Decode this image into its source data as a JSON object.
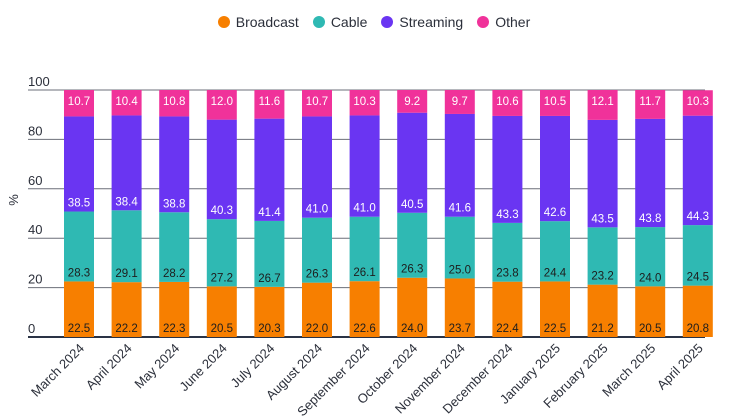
{
  "chart_data": {
    "type": "bar",
    "stacked": true,
    "title": "",
    "xlabel": "",
    "ylabel": "%",
    "ylim": [
      0,
      100
    ],
    "yticks": [
      0,
      20,
      40,
      60,
      80,
      100
    ],
    "grid": true,
    "legend_position": "top-center",
    "categories": [
      "March 2024",
      "April 2024",
      "May 2024",
      "June 2024",
      "July 2024",
      "August 2024",
      "September 2024",
      "October 2024",
      "November 2024",
      "December 2024",
      "January 2025",
      "February 2025",
      "March 2025",
      "April 2025"
    ],
    "series": [
      {
        "name": "Broadcast",
        "color": "#f77f00",
        "label_color": "#1d1d1d",
        "values": [
          22.5,
          22.2,
          22.3,
          20.5,
          20.3,
          22.0,
          22.6,
          24.0,
          23.7,
          22.4,
          22.5,
          21.2,
          20.5,
          20.8
        ]
      },
      {
        "name": "Cable",
        "color": "#2fb9b3",
        "label_color": "#1d1d1d",
        "values": [
          28.3,
          29.1,
          28.2,
          27.2,
          26.7,
          26.3,
          26.1,
          26.3,
          25.0,
          23.8,
          24.4,
          23.2,
          24.0,
          24.5
        ]
      },
      {
        "name": "Streaming",
        "color": "#6a35f2",
        "label_color": "#ffffff",
        "values": [
          38.5,
          38.4,
          38.8,
          40.3,
          41.4,
          41.0,
          41.0,
          40.5,
          41.6,
          43.3,
          42.6,
          43.5,
          43.8,
          44.3
        ]
      },
      {
        "name": "Other",
        "color": "#f0329a",
        "label_color": "#ffffff",
        "values": [
          10.7,
          10.4,
          10.8,
          12.0,
          11.6,
          10.7,
          10.3,
          9.2,
          9.7,
          10.6,
          10.5,
          12.1,
          11.7,
          10.3
        ]
      }
    ]
  }
}
